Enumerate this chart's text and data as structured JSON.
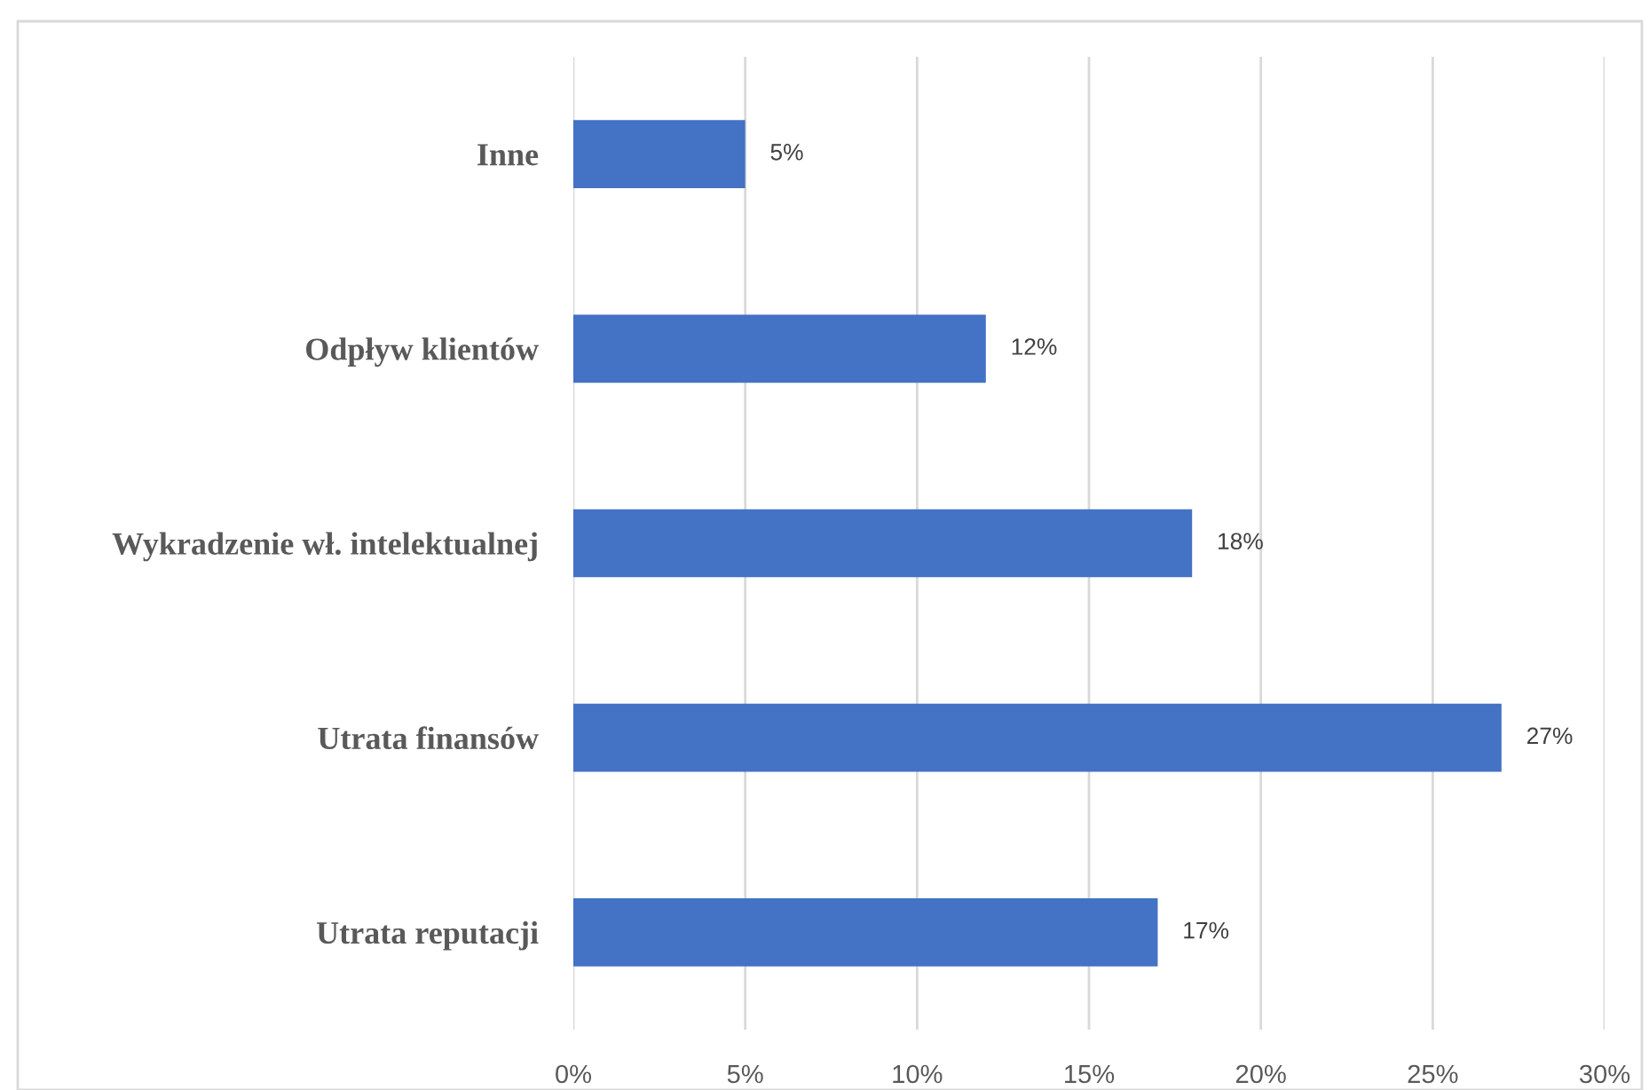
{
  "chart_data": {
    "type": "bar",
    "orientation": "horizontal",
    "categories": [
      "Inne",
      "Odpływ klientów",
      "Wykradzenie wł. intelektualnej",
      "Utrata finansów",
      "Utrata reputacji"
    ],
    "values": [
      5,
      12,
      18,
      27,
      17
    ],
    "color": "#4472c4",
    "value_labels": [
      "5%",
      "12%",
      "18%",
      "27%",
      "17%"
    ],
    "xlim": [
      0,
      30
    ],
    "xticks": [
      {
        "value": 0,
        "label": "0%"
      },
      {
        "value": 5,
        "label": "5%"
      },
      {
        "value": 10,
        "label": "10%"
      },
      {
        "value": 15,
        "label": "15%"
      },
      {
        "value": 20,
        "label": "20%"
      },
      {
        "value": 25,
        "label": "25%"
      },
      {
        "value": 30,
        "label": "30%"
      }
    ],
    "grid": "x"
  }
}
